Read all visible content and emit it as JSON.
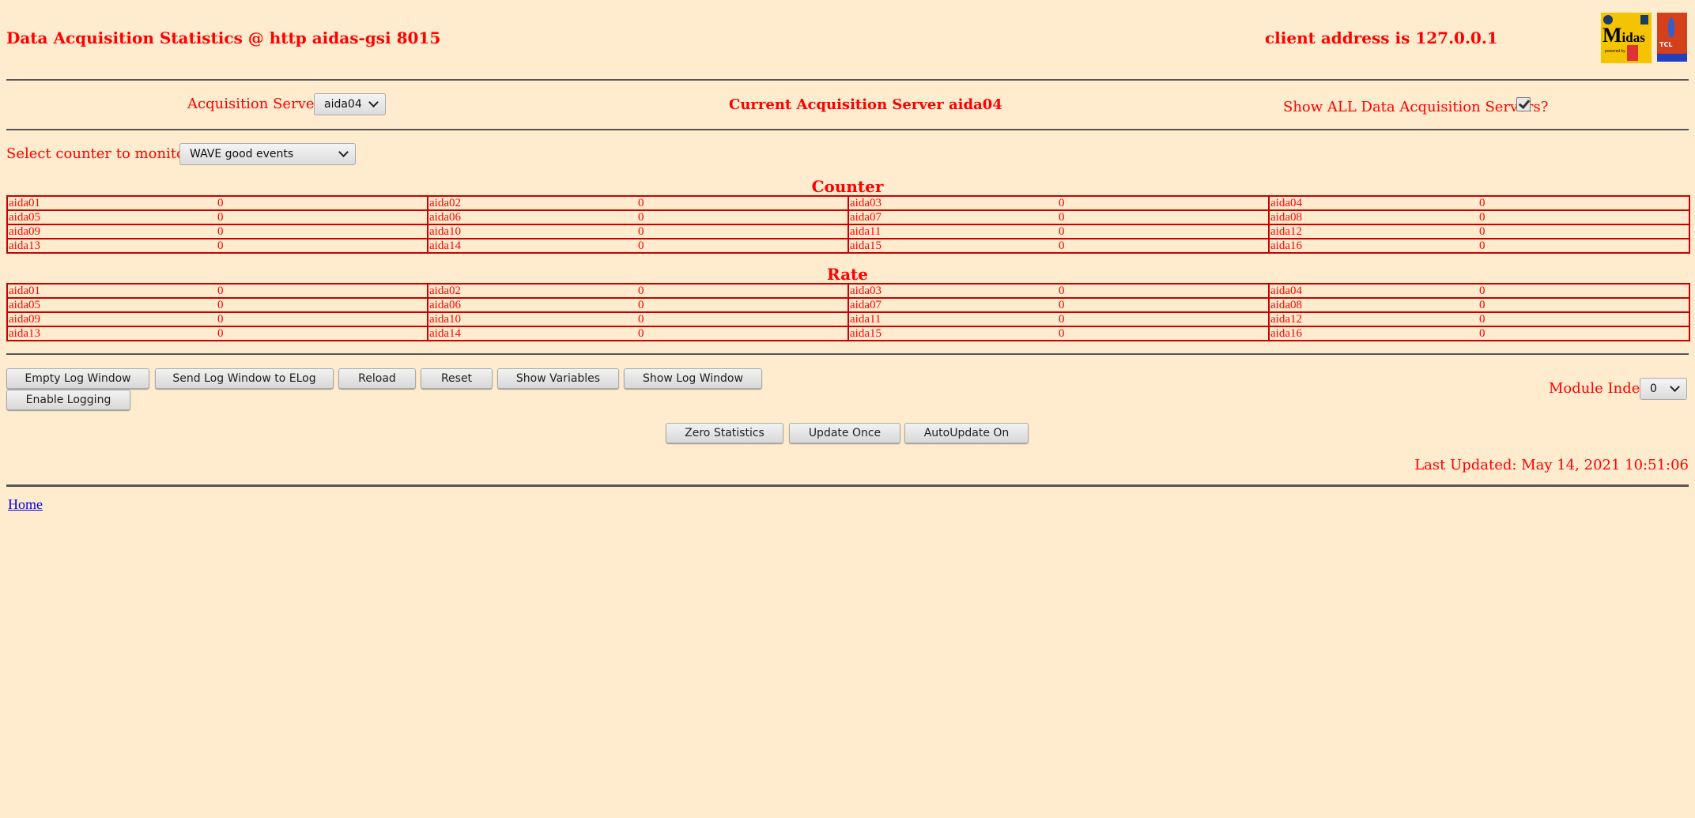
{
  "header": {
    "title": "Data Acquisition Statistics @ http aidas-gsi 8015",
    "client_address": "client address is 127.0.0.1",
    "logos": [
      "Midas powered by",
      "TCL POWERED"
    ]
  },
  "servers": {
    "label": "Acquisition Servers",
    "selected": "aida04",
    "current": "Current Acquisition Server aida04",
    "show_all_label": "Show ALL Data Acquisition Servers?",
    "show_all_checked": true
  },
  "counter_select": {
    "label": "Select counter to monitor",
    "selected": "WAVE good events"
  },
  "counter": {
    "heading": "Counter",
    "cells": [
      {
        "name": "aida01",
        "value": "0"
      },
      {
        "name": "aida02",
        "value": "0"
      },
      {
        "name": "aida03",
        "value": "0"
      },
      {
        "name": "aida04",
        "value": "0"
      },
      {
        "name": "aida05",
        "value": "0"
      },
      {
        "name": "aida06",
        "value": "0"
      },
      {
        "name": "aida07",
        "value": "0"
      },
      {
        "name": "aida08",
        "value": "0"
      },
      {
        "name": "aida09",
        "value": "0"
      },
      {
        "name": "aida10",
        "value": "0"
      },
      {
        "name": "aida11",
        "value": "0"
      },
      {
        "name": "aida12",
        "value": "0"
      },
      {
        "name": "aida13",
        "value": "0"
      },
      {
        "name": "aida14",
        "value": "0"
      },
      {
        "name": "aida15",
        "value": "0"
      },
      {
        "name": "aida16",
        "value": "0"
      }
    ]
  },
  "rate": {
    "heading": "Rate",
    "cells": [
      {
        "name": "aida01",
        "value": "0"
      },
      {
        "name": "aida02",
        "value": "0"
      },
      {
        "name": "aida03",
        "value": "0"
      },
      {
        "name": "aida04",
        "value": "0"
      },
      {
        "name": "aida05",
        "value": "0"
      },
      {
        "name": "aida06",
        "value": "0"
      },
      {
        "name": "aida07",
        "value": "0"
      },
      {
        "name": "aida08",
        "value": "0"
      },
      {
        "name": "aida09",
        "value": "0"
      },
      {
        "name": "aida10",
        "value": "0"
      },
      {
        "name": "aida11",
        "value": "0"
      },
      {
        "name": "aida12",
        "value": "0"
      },
      {
        "name": "aida13",
        "value": "0"
      },
      {
        "name": "aida14",
        "value": "0"
      },
      {
        "name": "aida15",
        "value": "0"
      },
      {
        "name": "aida16",
        "value": "0"
      }
    ]
  },
  "buttons": {
    "empty_log": "Empty Log Window",
    "send_log": "Send Log Window to ELog",
    "reload": "Reload",
    "reset": "Reset",
    "show_vars": "Show Variables",
    "show_log": "Show Log Window",
    "enable_logging": "Enable Logging",
    "zero_stats": "Zero Statistics",
    "update_once": "Update Once",
    "autoupdate": "AutoUpdate On"
  },
  "module_index": {
    "label": "Module Index",
    "selected": "0"
  },
  "last_updated": "Last Updated: May 14, 2021 10:51:06",
  "footer": {
    "home_link": "Home"
  }
}
